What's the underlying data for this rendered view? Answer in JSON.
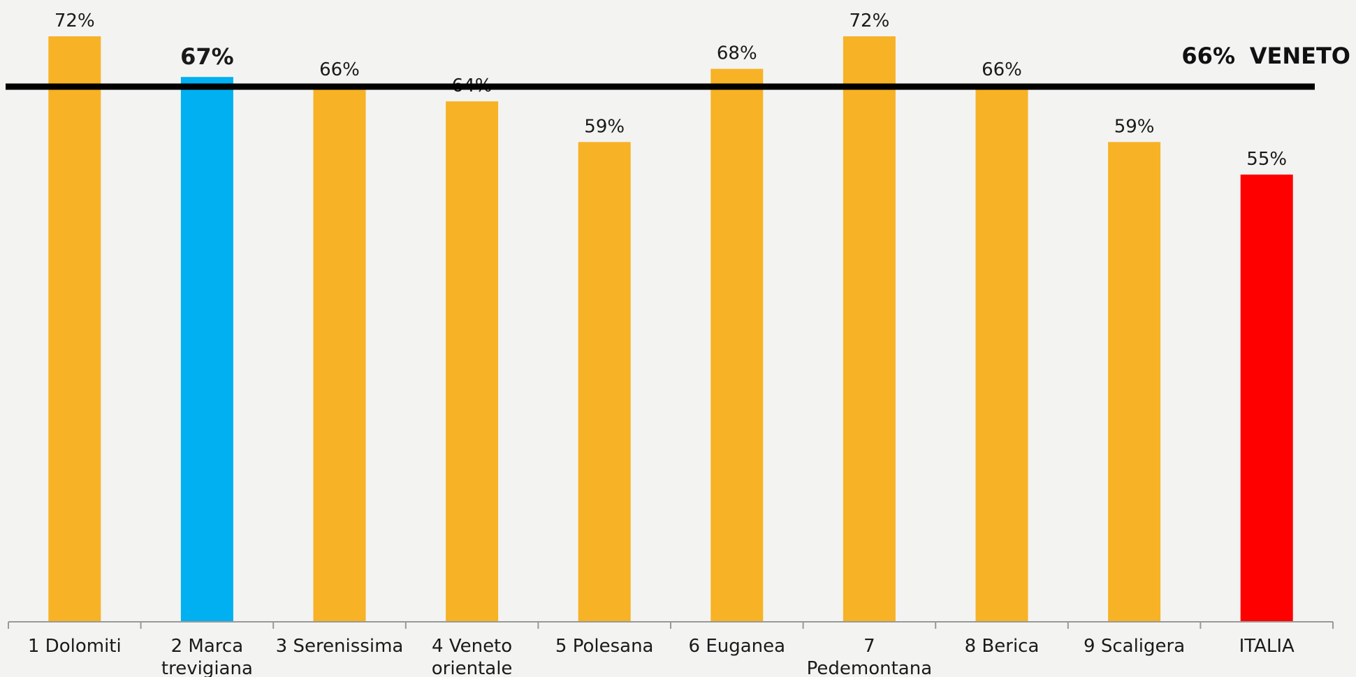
{
  "chart_data": {
    "type": "bar",
    "categories": [
      [
        "1 Dolomiti"
      ],
      [
        "2 Marca",
        "trevigiana"
      ],
      [
        "3 Serenissima"
      ],
      [
        "4 Veneto",
        "orientale"
      ],
      [
        "5 Polesana"
      ],
      [
        "6 Euganea"
      ],
      [
        "7",
        "Pedemontana"
      ],
      [
        "8 Berica"
      ],
      [
        "9 Scaligera"
      ],
      [
        "ITALIA"
      ]
    ],
    "values": [
      72,
      67,
      66,
      64,
      59,
      68,
      72,
      66,
      59,
      55
    ],
    "value_labels": [
      "72%",
      "67%",
      "66%",
      "64%",
      "59%",
      "68%",
      "72%",
      "66%",
      "59%",
      "55%"
    ],
    "bar_colors": [
      "#f7b225",
      "#00b0f0",
      "#f7b225",
      "#f7b225",
      "#f7b225",
      "#f7b225",
      "#f7b225",
      "#f7b225",
      "#f7b225",
      "#ff0000"
    ],
    "highlight_index": 1,
    "reference_line": {
      "value": 66,
      "label_value": "66%",
      "label_name": "VENETO",
      "color": "#000000"
    },
    "ylim": [
      0,
      75
    ],
    "grid": false,
    "xlabel": "",
    "ylabel": "",
    "title": ""
  }
}
